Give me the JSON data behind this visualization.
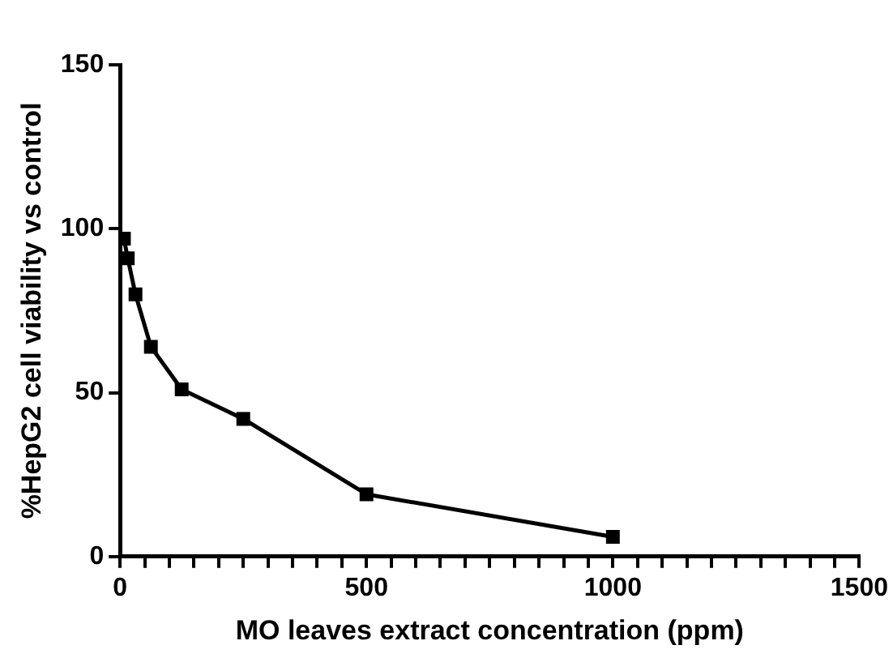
{
  "chart_data": {
    "type": "line",
    "xlabel": "MO leaves extract concentration (ppm)",
    "ylabel": "%HepG2 cell viability vs control",
    "x": [
      7.8,
      15.6,
      31.25,
      62.5,
      125,
      250,
      500,
      1000
    ],
    "series": [
      {
        "color": "#000000",
        "values": [
          97,
          91,
          80,
          64,
          51,
          42,
          19,
          6
        ]
      }
    ],
    "xlim": [
      0,
      1500
    ],
    "ylim": [
      0,
      150
    ],
    "xticks": [
      0,
      {
        "value": 50,
        "label": null
      },
      {
        "value": 100,
        "label": null
      },
      {
        "value": 150,
        "label": null
      },
      {
        "value": 200,
        "label": null
      },
      {
        "value": 250,
        "label": null
      },
      {
        "value": 300,
        "label": null
      },
      {
        "value": 350,
        "label": null
      },
      {
        "value": 400,
        "label": null
      },
      {
        "value": 450,
        "label": null
      },
      500,
      {
        "value": 550,
        "label": null
      },
      {
        "value": 600,
        "label": null
      },
      {
        "value": 650,
        "label": null
      },
      {
        "value": 700,
        "label": null
      },
      {
        "value": 750,
        "label": null
      },
      {
        "value": 800,
        "label": null
      },
      {
        "value": 850,
        "label": null
      },
      {
        "value": 900,
        "label": null
      },
      {
        "value": 950,
        "label": null
      },
      1000,
      {
        "value": 1050,
        "label": null
      },
      {
        "value": 1100,
        "label": null
      },
      {
        "value": 1150,
        "label": null
      },
      {
        "value": 1200,
        "label": null
      },
      {
        "value": 1250,
        "label": null
      },
      {
        "value": 1300,
        "label": null
      },
      {
        "value": 1350,
        "label": null
      },
      {
        "value": 1400,
        "label": null
      },
      {
        "value": 1450,
        "label": null
      },
      1500
    ],
    "yticks": [
      0,
      50,
      100,
      150
    ],
    "grid": false,
    "legend": false,
    "marker": "square",
    "line_style": "solid"
  }
}
